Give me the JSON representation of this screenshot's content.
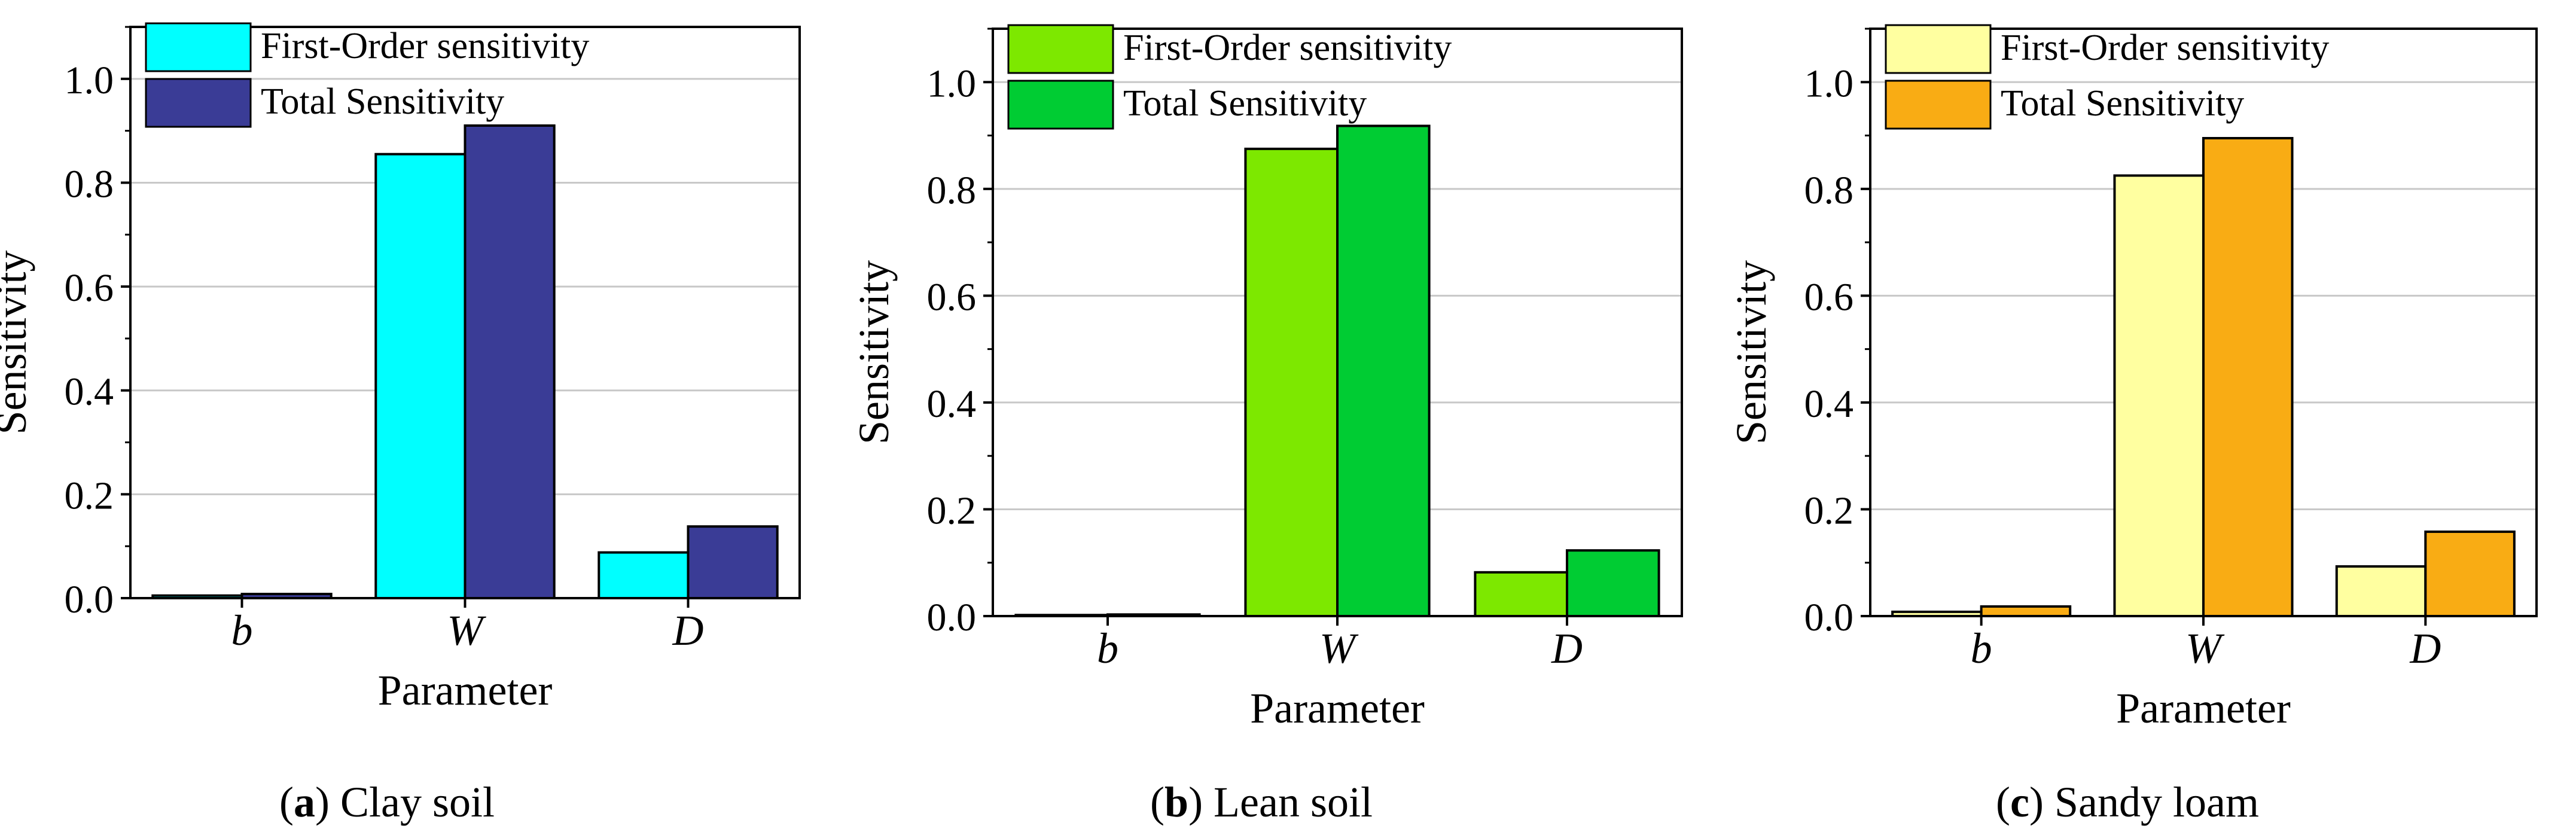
{
  "chart_data": [
    {
      "type": "bar",
      "ylabel": "Sensitivity",
      "xlabel": "Parameter",
      "categories": [
        "b",
        "W",
        "D"
      ],
      "ylim": [
        0.0,
        1.1
      ],
      "yticks": [
        "0.0",
        "0.2",
        "0.4",
        "0.6",
        "0.8",
        "1.0"
      ],
      "grid": true,
      "legend_position": "top-left",
      "series": [
        {
          "name": "First-Order sensitivity",
          "values": [
            0.005,
            0.855,
            0.088
          ],
          "color": "#00FFFF"
        },
        {
          "name": "Total Sensitivity",
          "values": [
            0.008,
            0.91,
            0.138
          ],
          "color": "#3A3C96"
        }
      ],
      "caption_letter": "a",
      "caption_text": "Clay soil"
    },
    {
      "type": "bar",
      "ylabel": "Sensitivity",
      "xlabel": "Parameter",
      "categories": [
        "b",
        "W",
        "D"
      ],
      "ylim": [
        0.0,
        1.1
      ],
      "yticks": [
        "0.0",
        "0.2",
        "0.4",
        "0.6",
        "0.8",
        "1.0"
      ],
      "grid": true,
      "legend_position": "top-left",
      "series": [
        {
          "name": "First-Order sensitivity",
          "values": [
            0.002,
            0.875,
            0.082
          ],
          "color": "#7DE800"
        },
        {
          "name": "Total Sensitivity",
          "values": [
            0.003,
            0.918,
            0.123
          ],
          "color": "#00CC33"
        }
      ],
      "caption_letter": "b",
      "caption_text": "Lean soil"
    },
    {
      "type": "bar",
      "ylabel": "Sensitivity",
      "xlabel": "Parameter",
      "categories": [
        "b",
        "W",
        "D"
      ],
      "ylim": [
        0.0,
        1.1
      ],
      "yticks": [
        "0.0",
        "0.2",
        "0.4",
        "0.6",
        "0.8",
        "1.0"
      ],
      "grid": true,
      "legend_position": "top-left",
      "series": [
        {
          "name": "First-Order sensitivity",
          "values": [
            0.008,
            0.825,
            0.093
          ],
          "color": "#FFFFA0"
        },
        {
          "name": "Total Sensitivity",
          "values": [
            0.018,
            0.895,
            0.158
          ],
          "color": "#F9AC14"
        }
      ],
      "caption_letter": "c",
      "caption_text": "Sandy loam"
    }
  ]
}
